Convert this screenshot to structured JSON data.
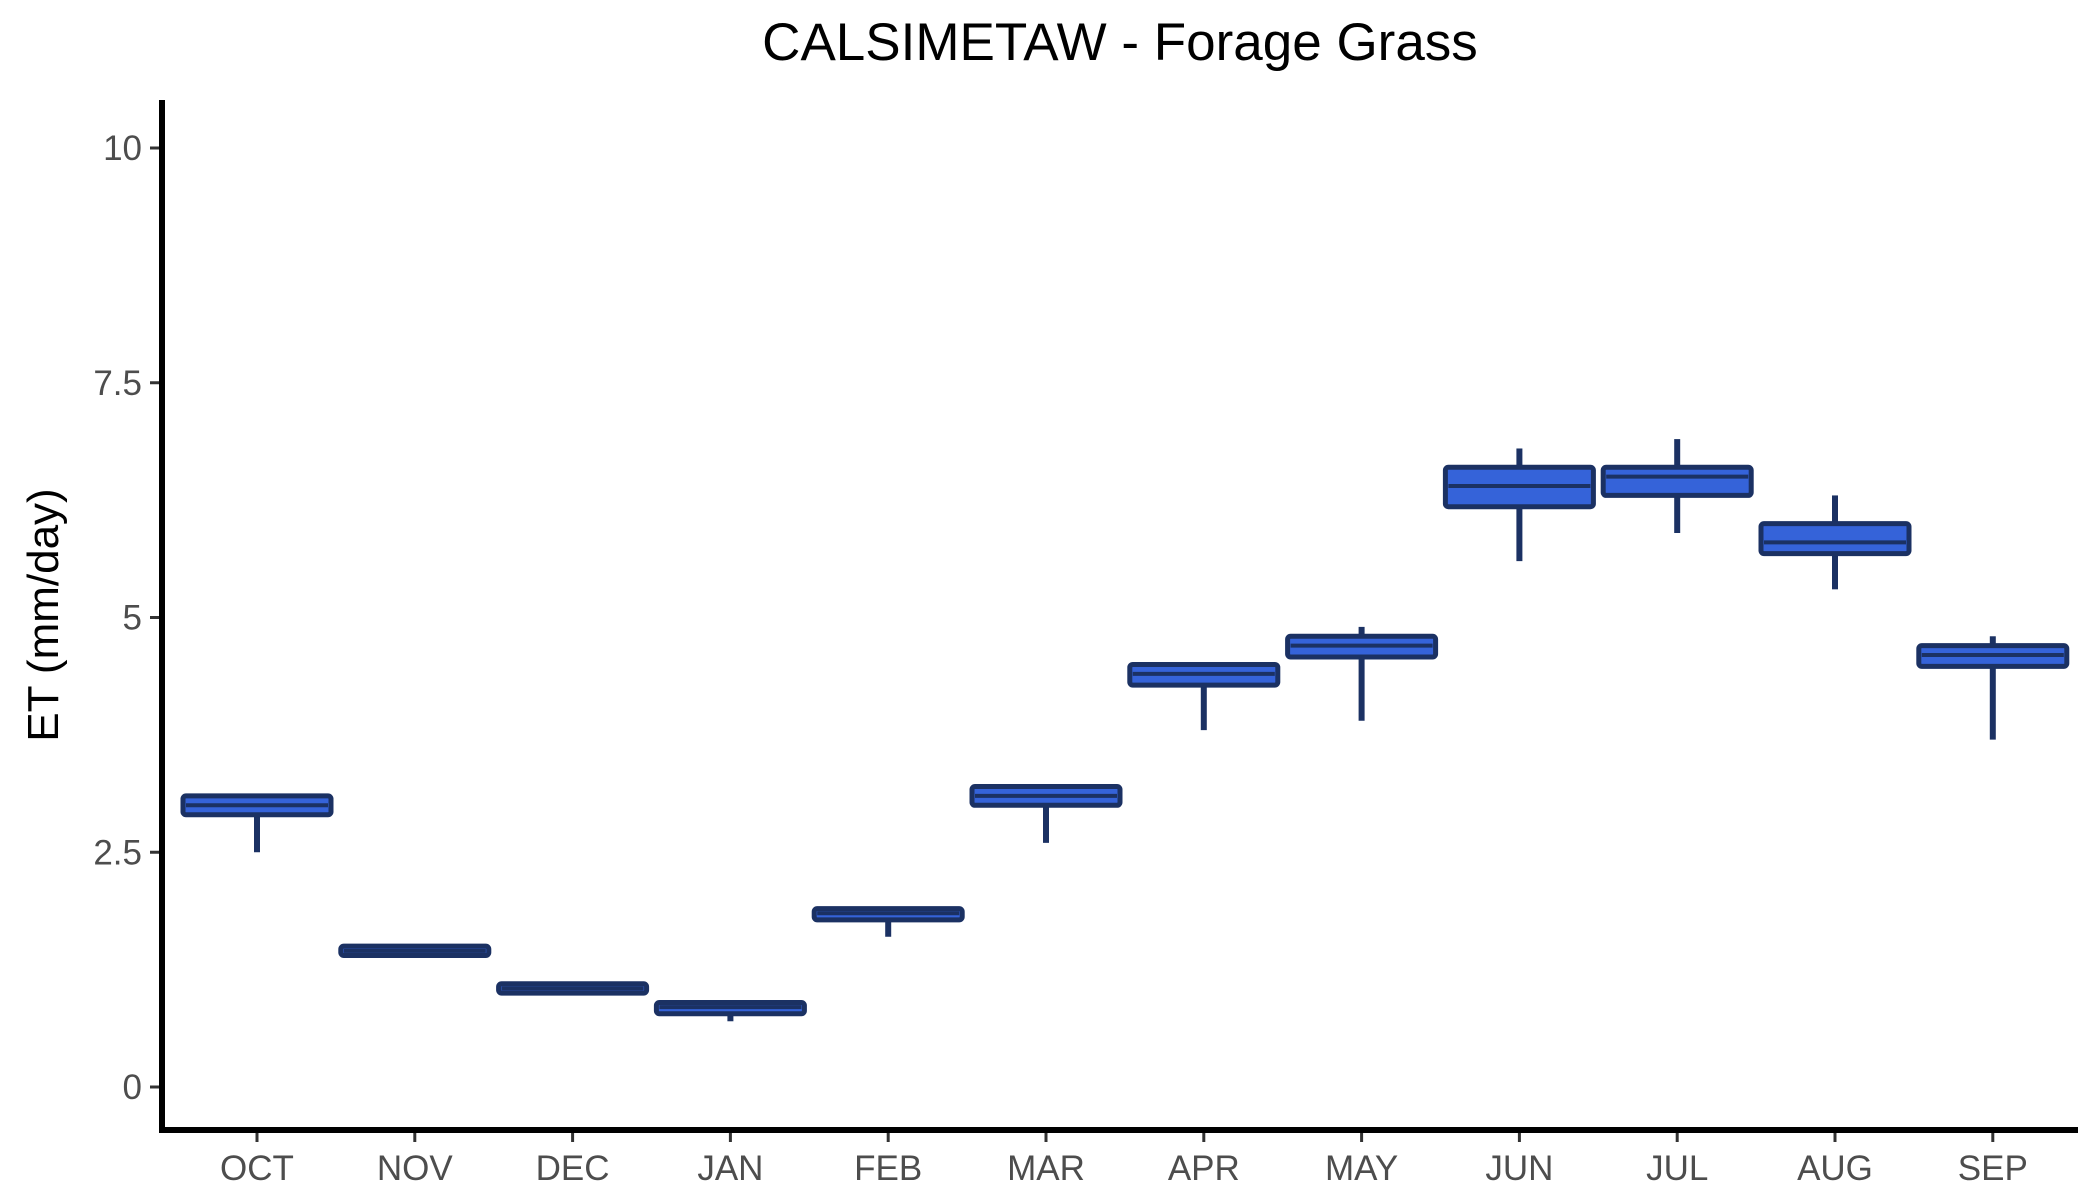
{
  "chart_data": {
    "type": "box",
    "title": "CALSIMETAW - Forage Grass",
    "xlabel": "",
    "ylabel": "ET (mm/day)",
    "ylim": [
      -0.5,
      10.5
    ],
    "yticks": [
      0,
      2.5,
      5,
      7.5,
      10
    ],
    "ytick_labels": [
      "0",
      "2.5",
      "5",
      "7.5",
      "10"
    ],
    "categories": [
      "OCT",
      "NOV",
      "DEC",
      "JAN",
      "FEB",
      "MAR",
      "APR",
      "MAY",
      "JUN",
      "JUL",
      "AUG",
      "SEP"
    ],
    "boxes": [
      {
        "min": 2.5,
        "q1": 2.9,
        "median": 3.0,
        "q3": 3.1,
        "max": 3.1
      },
      {
        "min": 1.4,
        "q1": 1.4,
        "median": 1.45,
        "q3": 1.5,
        "max": 1.5
      },
      {
        "min": 1.0,
        "q1": 1.0,
        "median": 1.05,
        "q3": 1.1,
        "max": 1.1
      },
      {
        "min": 0.7,
        "q1": 0.78,
        "median": 0.85,
        "q3": 0.9,
        "max": 0.9
      },
      {
        "min": 1.6,
        "q1": 1.78,
        "median": 1.85,
        "q3": 1.9,
        "max": 1.9
      },
      {
        "min": 2.6,
        "q1": 3.0,
        "median": 3.1,
        "q3": 3.2,
        "max": 3.2
      },
      {
        "min": 3.8,
        "q1": 4.28,
        "median": 4.4,
        "q3": 4.5,
        "max": 4.5
      },
      {
        "min": 3.9,
        "q1": 4.58,
        "median": 4.7,
        "q3": 4.8,
        "max": 4.9
      },
      {
        "min": 5.6,
        "q1": 6.18,
        "median": 6.4,
        "q3": 6.6,
        "max": 6.8
      },
      {
        "min": 5.9,
        "q1": 6.3,
        "median": 6.5,
        "q3": 6.6,
        "max": 6.9
      },
      {
        "min": 5.3,
        "q1": 5.68,
        "median": 5.8,
        "q3": 6.0,
        "max": 6.3
      },
      {
        "min": 3.7,
        "q1": 4.48,
        "median": 4.6,
        "q3": 4.7,
        "max": 4.8
      }
    ],
    "legend": "none",
    "grid": false,
    "colors": {
      "box_fill": "#3563d9",
      "box_stroke": "#1b3163",
      "axis": "#000000"
    }
  }
}
